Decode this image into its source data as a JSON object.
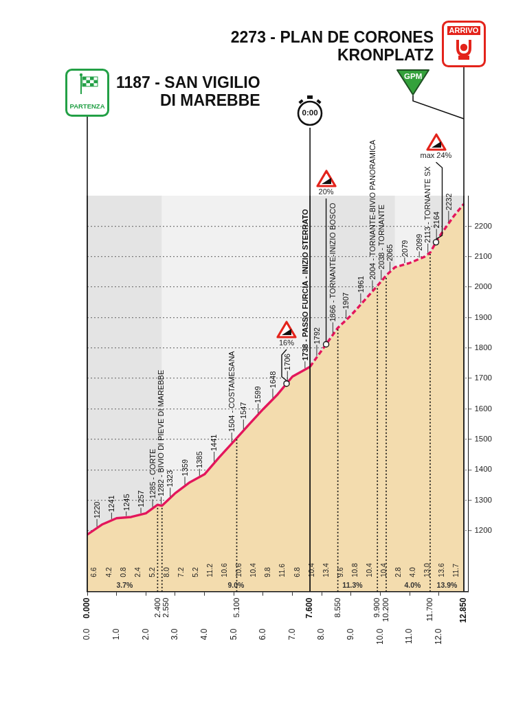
{
  "chart_data": {
    "type": "area",
    "series": [
      {
        "x": [
          0,
          0.5,
          1,
          1.5,
          2,
          2.4,
          2.55,
          3,
          3.5,
          4,
          4.5,
          5.1,
          5.5,
          6,
          6.5,
          7,
          7.6
        ],
        "values": [
          1187,
          1220,
          1241,
          1245,
          1257,
          1285,
          1282,
          1323,
          1359,
          1385,
          1441,
          1504,
          1547,
          1599,
          1648,
          1706,
          1738
        ],
        "value_labels": [
          null,
          "1220",
          "1241",
          "1245",
          "1257",
          "1285 - CORTE",
          "1282 - BIVIO DI PIEVE DI MAREBBE",
          "1323",
          "1359",
          "1385",
          "1441",
          "1504 - COSTAMESANA",
          "1547",
          "1599",
          "1648",
          "1706",
          "1738 - PASSO FURCIA - INIZIO STERRATO"
        ],
        "color": "#e3165b",
        "line_style": "solid"
      },
      {
        "x": [
          7.6,
          8,
          8.55,
          9,
          9.5,
          9.9,
          10.2,
          10.5,
          11,
          11.5,
          11.7,
          12,
          12.5,
          12.85
        ],
        "values": [
          1738,
          1792,
          1866,
          1907,
          1961,
          2004,
          2038,
          2065,
          2079,
          2099,
          2113,
          2164,
          2232,
          2273
        ],
        "value_labels": [
          null,
          "1792",
          "1866 - TORNANTE-INIZIO BOSCO",
          "1907",
          "1961",
          "2004 - TORNANTE-BIVIO PANORAMICA",
          "2038 - TORNANTE",
          "2065",
          "2079",
          "2099",
          "2113 - TORNANTE SX",
          "2164",
          "2232",
          null
        ],
        "color": "#e3165b",
        "line_style": "dashed"
      }
    ],
    "xlim": [
      0,
      13
    ],
    "ylim": [
      1000,
      2300
    ],
    "xticks": [
      {
        "value": 0,
        "label": "0.0"
      },
      {
        "value": 1,
        "label": "1.0"
      },
      {
        "value": 2,
        "label": "2.0"
      },
      {
        "value": 3,
        "label": "3.0"
      },
      {
        "value": 4,
        "label": "4.0"
      },
      {
        "value": 5,
        "label": "5.0"
      },
      {
        "value": 6,
        "label": "6.0"
      },
      {
        "value": 7,
        "label": "7.0"
      },
      {
        "value": 8,
        "label": "8.0"
      },
      {
        "value": 9,
        "label": "9.0"
      },
      {
        "value": 10,
        "label": "10.0"
      },
      {
        "value": 11,
        "label": "11.0"
      },
      {
        "value": 12,
        "label": "12.0"
      }
    ],
    "yticks": [
      1200,
      1300,
      1400,
      1500,
      1600,
      1700,
      1800,
      1900,
      2000,
      2100,
      2200
    ],
    "grid": "y",
    "ref_lines": [
      {
        "axis": "x",
        "value": 0,
        "label": "0.000",
        "line_style": "solid"
      },
      {
        "axis": "x",
        "value": 2.4,
        "label": "2.400",
        "line_style": "dotted"
      },
      {
        "axis": "x",
        "value": 2.55,
        "label": "2.550",
        "line_style": "dotted"
      },
      {
        "axis": "x",
        "value": 5.1,
        "label": "5.100",
        "line_style": "dotted"
      },
      {
        "axis": "x",
        "value": 7.6,
        "label": "7.600",
        "line_style": "solid"
      },
      {
        "axis": "x",
        "value": 8.55,
        "label": "8.550",
        "line_style": "dotted"
      },
      {
        "axis": "x",
        "value": 9.9,
        "label": "9.900",
        "line_style": "dotted"
      },
      {
        "axis": "x",
        "value": 10.2,
        "label": "10.200",
        "line_style": "dotted"
      },
      {
        "axis": "x",
        "value": 11.7,
        "label": "11.700",
        "line_style": "dotted"
      },
      {
        "axis": "x",
        "value": 12.85,
        "label": "12.850",
        "line_style": "solid"
      }
    ],
    "bands": [
      {
        "axis": "x",
        "from": 0,
        "to": 2.55,
        "label": "3.7%",
        "color": "#e4e4e4"
      },
      {
        "axis": "x",
        "from": 2.55,
        "to": 7.6,
        "label": "9.0%",
        "color": "#f1f1f1"
      },
      {
        "axis": "x",
        "from": 7.6,
        "to": 10.5,
        "label": "11.3%",
        "color": "#e4e4e4"
      },
      {
        "axis": "x",
        "from": 10.5,
        "to": 11.7,
        "label": "4.0%",
        "color": "#f1f1f1"
      },
      {
        "axis": "x",
        "from": 11.7,
        "to": 12.85,
        "label": "13.9%",
        "color": "#e4e4e4"
      }
    ],
    "annotations": [
      "PARTENZA",
      "1187 - SAN VIGILIO\nDI MAREBBE",
      "0:00",
      "ARRIVO",
      "2273 - PLAN DE CORONES\nKRONPLATZ",
      "GPM",
      {
        "text": "16%",
        "x": 6.8,
        "y": 1683
      },
      {
        "text": "20%",
        "x": 8.15,
        "y": 1812
      },
      {
        "text": "max 24%",
        "x": 11.9,
        "y": 2147
      },
      "6.6",
      "4.2",
      "0.8",
      "2.4",
      "5.2",
      "8.0",
      "7.2",
      "5.2",
      "11.2",
      "10.6",
      "10.6",
      "10.4",
      "9.8",
      "11.6",
      "6.8",
      "10.4",
      "13.4",
      "9.6",
      "10.8",
      "10.4",
      "10.4",
      "2.8",
      "4.0",
      "13.0",
      "13.6",
      "11.7"
    ]
  }
}
